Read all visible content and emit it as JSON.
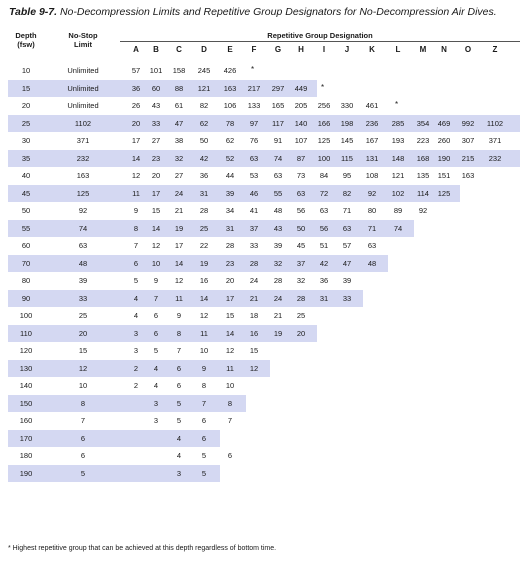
{
  "table": {
    "caption_label": "Table 9-7.",
    "caption_text": "No-Decompression Limits and Repetitive Group Designators for No-Decompression Air Dives.",
    "depth_header_line1": "Depth",
    "depth_header_line2": "(fsw)",
    "limit_header_line1": "No-Stop",
    "limit_header_line2": "Limit",
    "group_header": "Repetitive Group Designation",
    "group_letters": [
      "A",
      "B",
      "C",
      "D",
      "E",
      "F",
      "G",
      "H",
      "I",
      "J",
      "K",
      "L",
      "M",
      "N",
      "O",
      "Z"
    ],
    "rows": [
      {
        "depth": "10",
        "limit": "Unlimited",
        "groups": [
          "57",
          "101",
          "158",
          "245",
          "426",
          "",
          "",
          "",
          "",
          "",
          "",
          "",
          "",
          "",
          "",
          ""
        ],
        "star_col": 5
      },
      {
        "depth": "15",
        "limit": "Unlimited",
        "groups": [
          "36",
          "60",
          "88",
          "121",
          "163",
          "217",
          "297",
          "449",
          "",
          "",
          "",
          "",
          "",
          "",
          "",
          ""
        ],
        "star_col": 8
      },
      {
        "depth": "20",
        "limit": "Unlimited",
        "groups": [
          "26",
          "43",
          "61",
          "82",
          "106",
          "133",
          "165",
          "205",
          "256",
          "330",
          "461",
          "",
          "",
          "",
          "",
          ""
        ],
        "star_col": 11
      },
      {
        "depth": "25",
        "limit": "1102",
        "groups": [
          "20",
          "33",
          "47",
          "62",
          "78",
          "97",
          "117",
          "140",
          "166",
          "198",
          "236",
          "285",
          "354",
          "469",
          "992",
          "1102"
        ],
        "star_col": null
      },
      {
        "depth": "30",
        "limit": "371",
        "groups": [
          "17",
          "27",
          "38",
          "50",
          "62",
          "76",
          "91",
          "107",
          "125",
          "145",
          "167",
          "193",
          "223",
          "260",
          "307",
          "371"
        ],
        "star_col": null
      },
      {
        "depth": "35",
        "limit": "232",
        "groups": [
          "14",
          "23",
          "32",
          "42",
          "52",
          "63",
          "74",
          "87",
          "100",
          "115",
          "131",
          "148",
          "168",
          "190",
          "215",
          "232"
        ],
        "star_col": null
      },
      {
        "depth": "40",
        "limit": "163",
        "groups": [
          "12",
          "20",
          "27",
          "36",
          "44",
          "53",
          "63",
          "73",
          "84",
          "95",
          "108",
          "121",
          "135",
          "151",
          "163",
          ""
        ],
        "star_col": null
      },
      {
        "depth": "45",
        "limit": "125",
        "groups": [
          "11",
          "17",
          "24",
          "31",
          "39",
          "46",
          "55",
          "63",
          "72",
          "82",
          "92",
          "102",
          "114",
          "125",
          "",
          ""
        ],
        "star_col": null
      },
      {
        "depth": "50",
        "limit": "92",
        "groups": [
          "9",
          "15",
          "21",
          "28",
          "34",
          "41",
          "48",
          "56",
          "63",
          "71",
          "80",
          "89",
          "92",
          "",
          "",
          ""
        ],
        "star_col": null
      },
      {
        "depth": "55",
        "limit": "74",
        "groups": [
          "8",
          "14",
          "19",
          "25",
          "31",
          "37",
          "43",
          "50",
          "56",
          "63",
          "71",
          "74",
          "",
          "",
          "",
          ""
        ],
        "star_col": null
      },
      {
        "depth": "60",
        "limit": "63",
        "groups": [
          "7",
          "12",
          "17",
          "22",
          "28",
          "33",
          "39",
          "45",
          "51",
          "57",
          "63",
          "",
          "",
          "",
          "",
          ""
        ],
        "star_col": null
      },
      {
        "depth": "70",
        "limit": "48",
        "groups": [
          "6",
          "10",
          "14",
          "19",
          "23",
          "28",
          "32",
          "37",
          "42",
          "47",
          "48",
          "",
          "",
          "",
          "",
          ""
        ],
        "star_col": null
      },
      {
        "depth": "80",
        "limit": "39",
        "groups": [
          "5",
          "9",
          "12",
          "16",
          "20",
          "24",
          "28",
          "32",
          "36",
          "39",
          "",
          "",
          "",
          "",
          "",
          ""
        ],
        "star_col": null
      },
      {
        "depth": "90",
        "limit": "33",
        "groups": [
          "4",
          "7",
          "11",
          "14",
          "17",
          "21",
          "24",
          "28",
          "31",
          "33",
          "",
          "",
          "",
          "",
          "",
          ""
        ],
        "star_col": null
      },
      {
        "depth": "100",
        "limit": "25",
        "groups": [
          "4",
          "6",
          "9",
          "12",
          "15",
          "18",
          "21",
          "25",
          "",
          "",
          "",
          "",
          "",
          "",
          "",
          ""
        ],
        "star_col": null
      },
      {
        "depth": "110",
        "limit": "20",
        "groups": [
          "3",
          "6",
          "8",
          "11",
          "14",
          "16",
          "19",
          "20",
          "",
          "",
          "",
          "",
          "",
          "",
          "",
          ""
        ],
        "star_col": null
      },
      {
        "depth": "120",
        "limit": "15",
        "groups": [
          "3",
          "5",
          "7",
          "10",
          "12",
          "15",
          "",
          "",
          "",
          "",
          "",
          "",
          "",
          "",
          "",
          ""
        ],
        "star_col": null
      },
      {
        "depth": "130",
        "limit": "12",
        "groups": [
          "2",
          "4",
          "6",
          "9",
          "11",
          "12",
          "",
          "",
          "",
          "",
          "",
          "",
          "",
          "",
          "",
          ""
        ],
        "star_col": null
      },
      {
        "depth": "140",
        "limit": "10",
        "groups": [
          "2",
          "4",
          "6",
          "8",
          "10",
          "",
          "",
          "",
          "",
          "",
          "",
          "",
          "",
          "",
          "",
          ""
        ],
        "star_col": null
      },
      {
        "depth": "150",
        "limit": "8",
        "groups": [
          "",
          "3",
          "5",
          "7",
          "8",
          "",
          "",
          "",
          "",
          "",
          "",
          "",
          "",
          "",
          "",
          ""
        ],
        "star_col": null
      },
      {
        "depth": "160",
        "limit": "7",
        "groups": [
          "",
          "3",
          "5",
          "6",
          "7",
          "",
          "",
          "",
          "",
          "",
          "",
          "",
          "",
          "",
          "",
          ""
        ],
        "star_col": null
      },
      {
        "depth": "170",
        "limit": "6",
        "groups": [
          "",
          "",
          "4",
          "6",
          "",
          "",
          "",
          "",
          "",
          "",
          "",
          "",
          "",
          "",
          "",
          ""
        ],
        "star_col": null
      },
      {
        "depth": "180",
        "limit": "6",
        "groups": [
          "",
          "",
          "4",
          "5",
          "6",
          "",
          "",
          "",
          "",
          "",
          "",
          "",
          "",
          "",
          "",
          ""
        ],
        "star_col": null
      },
      {
        "depth": "190",
        "limit": "5",
        "groups": [
          "",
          "",
          "3",
          "5",
          "",
          "",
          "",
          "",
          "",
          "",
          "",
          "",
          "",
          "",
          "",
          ""
        ],
        "star_col": null
      }
    ],
    "star_symbol": "*",
    "footnote": "* Highest repetitive group that can be achieved at this depth regardless of bottom time."
  },
  "colors": {
    "band": "#d4d8f2",
    "text": "#1a1a1a"
  }
}
